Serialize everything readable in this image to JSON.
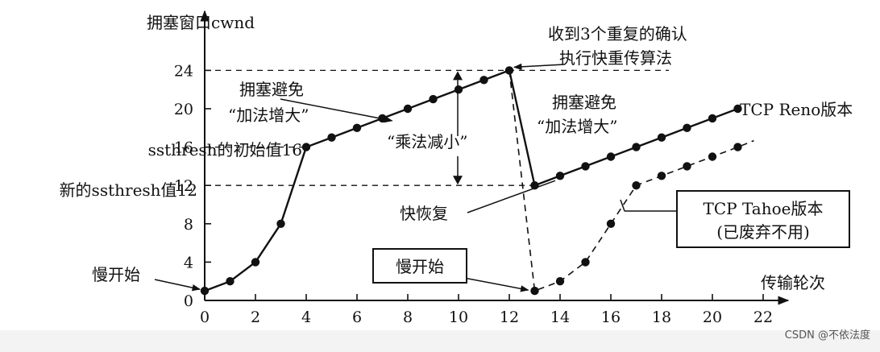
{
  "chart_data": {
    "type": "line",
    "ylabel": "拥塞窗口cwnd",
    "xlabel": "传输轮次",
    "xlim": [
      0,
      22
    ],
    "ylim": [
      0,
      24
    ],
    "x_ticks": [
      "0",
      "2",
      "4",
      "6",
      "8",
      "10",
      "12",
      "14",
      "16",
      "18",
      "20",
      "22"
    ],
    "y_ticks": [
      "0",
      "4",
      "8",
      "12",
      "16",
      "20",
      "24"
    ],
    "y_tick_values": [
      0,
      4,
      8,
      12,
      16,
      20,
      24
    ],
    "series": [
      {
        "name": "TCP Reno版本",
        "style": "solid",
        "x": [
          0,
          1,
          2,
          3,
          4,
          5,
          6,
          7,
          8,
          9,
          10,
          11,
          12,
          13,
          14,
          15,
          16,
          17,
          18,
          19,
          20,
          21
        ],
        "y": [
          1,
          2,
          4,
          8,
          16,
          17,
          18,
          19,
          20,
          21,
          22,
          23,
          24,
          12,
          13,
          14,
          15,
          16,
          17,
          18,
          19,
          20
        ]
      },
      {
        "name": "TCP Tahoe版本",
        "sub": "(已废弃不用)",
        "style": "dashed",
        "x": [
          12,
          13,
          14,
          15,
          16,
          17,
          18,
          19,
          20,
          21
        ],
        "y": [
          24,
          1,
          2,
          4,
          8,
          12,
          13,
          14,
          15,
          16
        ]
      }
    ],
    "ref_lines": [
      {
        "label": "ssthresh的初始值16",
        "y": 16
      },
      {
        "label": "新的ssthresh值12",
        "y": 12
      }
    ],
    "annotations": {
      "slow_start": "慢开始",
      "slow_start_box": "慢开始",
      "triple_dup_1": "收到3个重复的确认",
      "triple_dup_2": "执行快重传算法",
      "ca_left_1": "拥塞避免",
      "ca_left_2": "“加法增大”",
      "ca_right_1": "拥塞避免",
      "ca_right_2": "“加法增大”",
      "mult_decrease": "“乘法减小”",
      "fast_recovery": "快恢复"
    },
    "grid": false
  },
  "watermark": "CSDN @不依法度"
}
